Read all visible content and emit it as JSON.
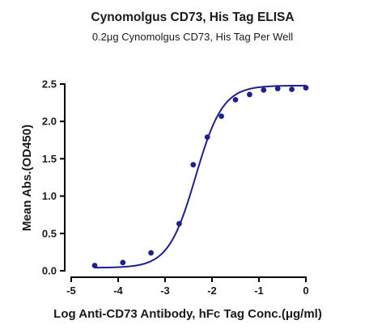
{
  "chart_data": {
    "type": "scatter",
    "title": "Cynomolgus CD73, His Tag ELISA",
    "subtitle": "0.2μg Cynomolgus CD73, His Tag Per Well",
    "xlabel": "Log Anti-CD73 Antibody, hFc Tag Conc.(μg/ml)",
    "ylabel": "Mean Abs.(OD450)",
    "xlim": [
      -5,
      0
    ],
    "ylim": [
      0,
      2.5
    ],
    "x_ticks": [
      -5,
      -4,
      -3,
      -2,
      -1,
      0
    ],
    "x_tick_labels": [
      "-5",
      "-4",
      "-3",
      "-2",
      "-1",
      "0"
    ],
    "y_ticks": [
      0,
      0.5,
      1.0,
      1.5,
      2.0,
      2.5
    ],
    "y_tick_labels": [
      "0.0",
      "0.5",
      "1.0",
      "1.5",
      "2.0",
      "2.5"
    ],
    "grid": false,
    "legend": "none",
    "series": [
      {
        "color": "#1f1f8f",
        "x": [
          -4.5,
          -3.9,
          -3.3,
          -2.7,
          -2.4,
          -2.1,
          -1.8,
          -1.5,
          -1.2,
          -0.9,
          -0.6,
          -0.3,
          0.0
        ],
        "y": [
          0.07,
          0.11,
          0.24,
          0.63,
          1.42,
          1.79,
          2.07,
          2.29,
          2.36,
          2.42,
          2.44,
          2.43,
          2.45
        ],
        "fit": "4-parameter logistic",
        "fit_params": {
          "bottom": 0.04,
          "top": 2.48,
          "logEC50": -2.35,
          "hill": 1.5
        }
      }
    ]
  }
}
